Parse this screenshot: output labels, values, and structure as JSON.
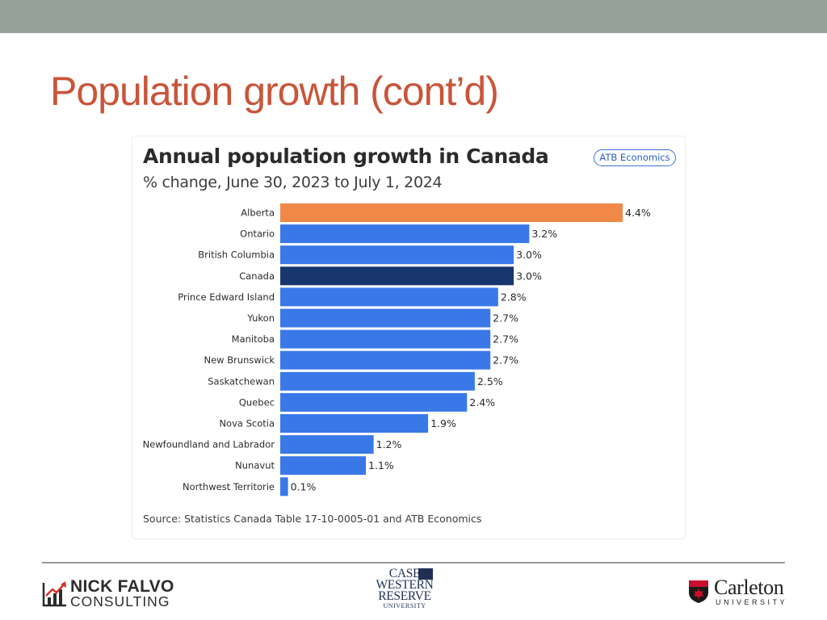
{
  "slide": {
    "title": "Population growth (cont’d)"
  },
  "chart_data": {
    "type": "bar",
    "orientation": "horizontal",
    "title": "Annual population growth in Canada",
    "subtitle": "% change, June 30, 2023 to July 1, 2024",
    "badge": "ATB Economics",
    "categories": [
      "Alberta",
      "Ontario",
      "British Columbia",
      "Canada",
      "Prince Edward Island",
      "Yukon",
      "Manitoba",
      "New Brunswick",
      "Saskatchewan",
      "Quebec",
      "Nova Scotia",
      "Newfoundland and Labrador",
      "Nunavut",
      "Northwest Territorie"
    ],
    "values": [
      4.4,
      3.2,
      3.0,
      3.0,
      2.8,
      2.7,
      2.7,
      2.7,
      2.5,
      2.4,
      1.9,
      1.2,
      1.1,
      0.1
    ],
    "value_labels": [
      "4.4%",
      "3.2%",
      "3.0%",
      "3.0%",
      "2.8%",
      "2.7%",
      "2.7%",
      "2.7%",
      "2.5%",
      "2.4%",
      "1.9%",
      "1.2%",
      "1.1%",
      "0.1%"
    ],
    "bar_colors": [
      "#f08848",
      "#3a78e8",
      "#3a78e8",
      "#17366e",
      "#3a78e8",
      "#3a78e8",
      "#3a78e8",
      "#3a78e8",
      "#3a78e8",
      "#3a78e8",
      "#3a78e8",
      "#3a78e8",
      "#3a78e8",
      "#3a78e8"
    ],
    "xlim": [
      0,
      4.4
    ],
    "grid": false,
    "source": "Source: Statistics Canada Table 17-10-0005-01 and ATB Economics"
  },
  "footer": {
    "logo_left": {
      "line1": "NICK FALVO",
      "line2": "CONSULTING",
      "icon": "bar-chart-arrow-icon"
    },
    "logo_center": {
      "line1": "CASE",
      "line2": "WESTERN",
      "line3": "RESERVE",
      "line4": "UNIVERSITY"
    },
    "logo_right": {
      "name": "Carleton",
      "sub": "UNIVERSITY",
      "icon": "maple-shield-icon"
    }
  }
}
